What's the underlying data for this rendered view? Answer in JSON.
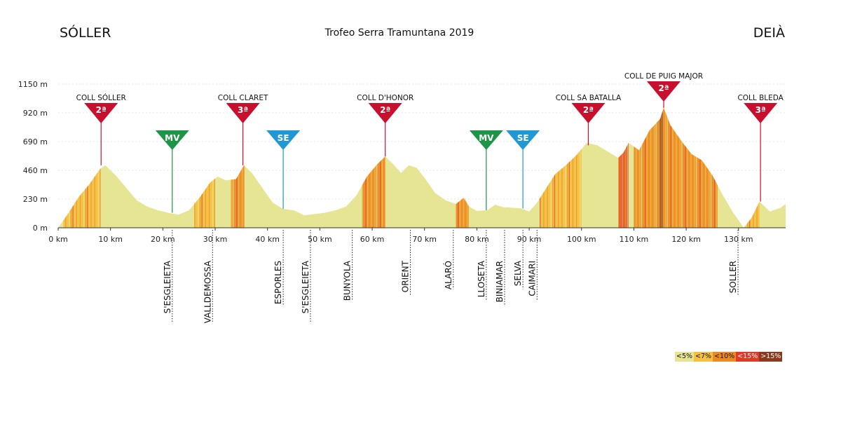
{
  "header": {
    "start": "SÓLLER",
    "end": "DEIÀ",
    "title": "Trofeo Serra Tramuntana 2019"
  },
  "chart_data": {
    "type": "area",
    "title": "Trofeo Serra Tramuntana 2019",
    "xlabel": "",
    "ylabel": "",
    "xlim": [
      0,
      139
    ],
    "ylim": [
      0,
      1150
    ],
    "x_ticks": [
      0,
      10,
      20,
      30,
      40,
      50,
      60,
      70,
      80,
      90,
      100,
      110,
      120,
      130
    ],
    "x_tick_labels": [
      "0 km",
      "10 km",
      "20 km",
      "30 km",
      "40 km",
      "50 km",
      "60 km",
      "70 km",
      "80 km",
      "90 km",
      "100 km",
      "110 km",
      "120 km",
      "130 km"
    ],
    "y_ticks": [
      0,
      230,
      460,
      690,
      920,
      1150
    ],
    "y_tick_labels": [
      "0 m",
      "230 m",
      "460 m",
      "690 m",
      "920 m",
      "1150 m"
    ],
    "grid": true,
    "profile": {
      "km": [
        0,
        2,
        4,
        6,
        8,
        9,
        11,
        13,
        15,
        17,
        19,
        21,
        23,
        25,
        27,
        29,
        30.5,
        32,
        34,
        35.5,
        37,
        39,
        41,
        43,
        45,
        47,
        49,
        51,
        53,
        55,
        57,
        59,
        61,
        62.5,
        64,
        65.5,
        67,
        68.5,
        70,
        72,
        74,
        76,
        77.5,
        78.5,
        80,
        82,
        83.5,
        85,
        87,
        88.5,
        90,
        91.5,
        93,
        95,
        97,
        99,
        101,
        103,
        105,
        107,
        108,
        109,
        111,
        113,
        115,
        115.7,
        117,
        119,
        121,
        123,
        125,
        127,
        129,
        131,
        132.5,
        134,
        136,
        138,
        139
      ],
      "elevation_m": [
        0,
        120,
        250,
        350,
        470,
        500,
        420,
        320,
        220,
        170,
        140,
        120,
        105,
        140,
        240,
        360,
        410,
        380,
        390,
        500,
        440,
        320,
        200,
        150,
        140,
        100,
        110,
        120,
        140,
        170,
        260,
        410,
        510,
        570,
        510,
        440,
        500,
        480,
        400,
        280,
        220,
        190,
        240,
        170,
        135,
        140,
        185,
        165,
        160,
        155,
        130,
        200,
        300,
        430,
        500,
        580,
        680,
        660,
        610,
        560,
        600,
        680,
        620,
        780,
        870,
        960,
        820,
        700,
        590,
        540,
        420,
        260,
        120,
        0,
        80,
        210,
        130,
        160,
        190
      ]
    },
    "gradient_bands": [
      {
        "from_km": 1,
        "to_km": 8,
        "class": "<7%"
      },
      {
        "from_km": 26,
        "to_km": 30,
        "class": "<7%"
      },
      {
        "from_km": 33,
        "to_km": 35.5,
        "class": "<10%"
      },
      {
        "from_km": 58,
        "to_km": 62.5,
        "class": "<10%"
      },
      {
        "from_km": 76,
        "to_km": 78.5,
        "class": "<10%"
      },
      {
        "from_km": 92,
        "to_km": 100,
        "class": "<7%"
      },
      {
        "from_km": 107,
        "to_km": 109,
        "class": "<15%"
      },
      {
        "from_km": 110,
        "to_km": 115,
        "class": "<10%"
      },
      {
        "from_km": 114.8,
        "to_km": 115.6,
        "class": ">15%"
      },
      {
        "from_km": 115.6,
        "to_km": 126,
        "class": "<10%"
      },
      {
        "from_km": 131,
        "to_km": 134,
        "class": "<7%"
      }
    ],
    "climbs": [
      {
        "name": "COLL SÓLLER",
        "category": "2ª",
        "km": 8.2,
        "elevation": 500
      },
      {
        "name": "COLL CLARET",
        "category": "3ª",
        "km": 35.3,
        "elevation": 500
      },
      {
        "name": "COLL D'HONOR",
        "category": "2ª",
        "km": 62.5,
        "elevation": 570
      },
      {
        "name": "COLL SA BATALLA",
        "category": "2ª",
        "km": 101.3,
        "elevation": 660
      },
      {
        "name": "COLL DE PUIG MAJOR",
        "category": "2ª",
        "km": 115.7,
        "elevation": 960
      },
      {
        "name": "COLL BLEDA",
        "category": "3ª",
        "km": 134.2,
        "elevation": 210
      }
    ],
    "sprints": [
      {
        "label": "MV",
        "km": 21.8,
        "color": "#1d9447"
      },
      {
        "label": "SE",
        "km": 43,
        "color": "#1f98d4"
      },
      {
        "label": "MV",
        "km": 81.8,
        "color": "#1d9447"
      },
      {
        "label": "SE",
        "km": 88.8,
        "color": "#1f98d4"
      }
    ],
    "towns": [
      {
        "name": "S'ESGLEIETA",
        "km": 21.8
      },
      {
        "name": "VALLDEMOSSA",
        "km": 29.5
      },
      {
        "name": "ESPORLES",
        "km": 43
      },
      {
        "name": "S'ESGLEIETA",
        "km": 48.2
      },
      {
        "name": "BUNYOLA",
        "km": 56.2
      },
      {
        "name": "ORIENT",
        "km": 67.3
      },
      {
        "name": "ALARÓ",
        "km": 75.5
      },
      {
        "name": "LLOSETA",
        "km": 81.8
      },
      {
        "name": "BINIAMAR",
        "km": 85.3
      },
      {
        "name": "SELVA",
        "km": 88.8
      },
      {
        "name": "CAIMARI",
        "km": 91.5
      },
      {
        "name": "SOLLER",
        "km": 129.9
      }
    ],
    "legend": [
      {
        "label": "<5%",
        "color": "#e6e594"
      },
      {
        "label": "<7%",
        "color": "#f5c03e"
      },
      {
        "label": "<10%",
        "color": "#ec8a22"
      },
      {
        "label": "<15%",
        "color": "#e03a26"
      },
      {
        "label": ">15%",
        "color": "#8b3a1e"
      }
    ],
    "colors": {
      "climb_marker": "#c8102e",
      "profile_base": "#e6e594"
    }
  }
}
